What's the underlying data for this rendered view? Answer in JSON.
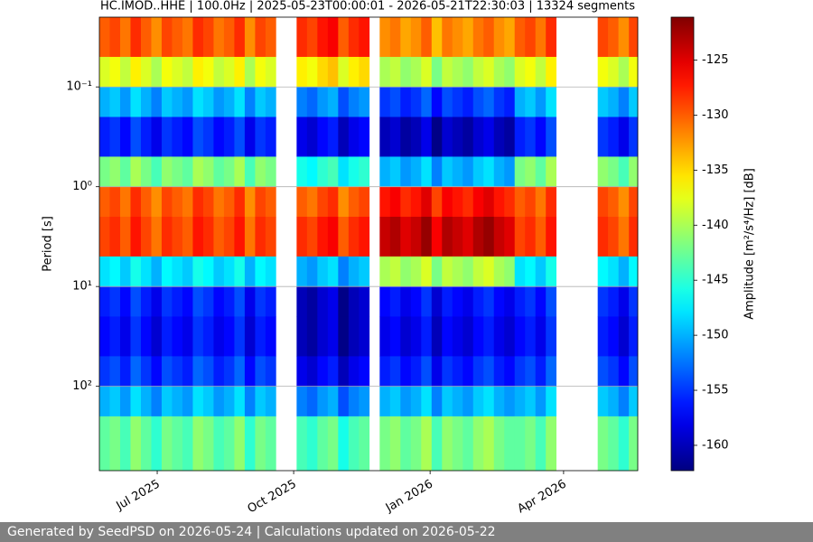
{
  "chart_data": {
    "type": "heatmap",
    "title": "HC.IMOD..HHE | 100.0Hz | 2025-05-23T00:00:01 - 2026-05-21T22:30:03 | 13324 segments",
    "ylabel": "Period [s]",
    "colorbar_label": "Amplitude [m²/s⁴/Hz] [dB]",
    "footer": "Generated by SeedPSD on 2026-05-24 | Calculations updated on 2026-05-22",
    "colormap": "jet",
    "y_log": true,
    "y_inverted": true,
    "grid": true,
    "xlim": [
      "2025-05-23",
      "2026-05-21"
    ],
    "xticks": [
      {
        "value": "2025-07-01",
        "label": "Jul 2025"
      },
      {
        "value": "2025-10-01",
        "label": "Oct 2025"
      },
      {
        "value": "2026-01-01",
        "label": "Jan 2026"
      },
      {
        "value": "2026-04-01",
        "label": "Apr 2026"
      }
    ],
    "ylim": [
      0.02,
      700
    ],
    "yticks": [
      {
        "value": 0.1,
        "label": "10⁻¹"
      },
      {
        "value": 1,
        "label": "10⁰"
      },
      {
        "value": 10,
        "label": "10¹"
      },
      {
        "value": 100,
        "label": "10²"
      }
    ],
    "clim": [
      -162.3,
      -121.1
    ],
    "cticks": [
      -160,
      -155,
      -150,
      -145,
      -140,
      -135,
      -130,
      -125
    ],
    "x": [
      "2025-05-23",
      "2025-05-30",
      "2025-06-06",
      "2025-06-13",
      "2025-06-20",
      "2025-06-27",
      "2025-07-04",
      "2025-07-11",
      "2025-07-18",
      "2025-07-25",
      "2025-08-01",
      "2025-08-08",
      "2025-08-15",
      "2025-08-22",
      "2025-08-29",
      "2025-09-05",
      "2025-09-12",
      "2025-09-19",
      "2025-09-26",
      "2025-10-03",
      "2025-10-10",
      "2025-10-17",
      "2025-10-24",
      "2025-10-31",
      "2025-11-07",
      "2025-11-14",
      "2025-11-21",
      "2025-11-28",
      "2025-12-05",
      "2025-12-12",
      "2025-12-19",
      "2025-12-26",
      "2026-01-02",
      "2026-01-09",
      "2026-01-16",
      "2026-01-23",
      "2026-01-30",
      "2026-02-06",
      "2026-02-13",
      "2026-02-20",
      "2026-02-27",
      "2026-03-06",
      "2026-03-13",
      "2026-03-20",
      "2026-03-27",
      "2026-04-03",
      "2026-04-10",
      "2026-04-17",
      "2026-04-24",
      "2026-05-01",
      "2026-05-08",
      "2026-05-15"
    ],
    "period_bins": [
      0.02,
      0.05,
      0.1,
      0.2,
      0.5,
      1,
      2,
      5,
      10,
      20,
      50,
      100,
      200,
      700
    ],
    "values": [
      [
        -130,
        -129,
        -131,
        -128,
        -130,
        -132,
        -129,
        -130,
        -131,
        -128,
        -129,
        -131,
        -130,
        -128,
        -132,
        -129,
        -130,
        null,
        null,
        -128,
        -129,
        -127,
        -126,
        -130,
        -128,
        -127,
        null,
        -132,
        -131,
        -133,
        -132,
        -130,
        -134,
        -131,
        -132,
        -133,
        -131,
        -130,
        -132,
        -133,
        -130,
        -129,
        -131,
        -128,
        null,
        null,
        null,
        null,
        -129,
        -130,
        -132,
        -129
      ],
      [
        -138,
        -137,
        -139,
        -136,
        -138,
        -140,
        -137,
        -138,
        -139,
        -136,
        -137,
        -139,
        -138,
        -136,
        -140,
        -137,
        -138,
        null,
        null,
        -136,
        -137,
        -135,
        -134,
        -138,
        -136,
        -135,
        null,
        -140,
        -139,
        -141,
        -140,
        -138,
        -142,
        -139,
        -140,
        -141,
        -139,
        -138,
        -140,
        -141,
        -138,
        -137,
        -139,
        -136,
        null,
        null,
        null,
        null,
        -137,
        -138,
        -140,
        -137
      ],
      [
        -150,
        -149,
        -151,
        -148,
        -150,
        -152,
        -149,
        -150,
        -151,
        -148,
        -149,
        -151,
        -150,
        -148,
        -152,
        -149,
        -150,
        null,
        null,
        -152,
        -153,
        -151,
        -150,
        -154,
        -152,
        -151,
        null,
        -155,
        -154,
        -156,
        -155,
        -153,
        -157,
        -154,
        -155,
        -156,
        -154,
        -153,
        -155,
        -156,
        -150,
        -149,
        -151,
        -148,
        null,
        null,
        null,
        null,
        -149,
        -150,
        -152,
        -149
      ],
      [
        -156,
        -155,
        -157,
        -154,
        -156,
        -158,
        -155,
        -156,
        -157,
        -154,
        -155,
        -157,
        -156,
        -154,
        -158,
        -155,
        -156,
        null,
        null,
        -158,
        -159,
        -157,
        -156,
        -160,
        -158,
        -157,
        null,
        -160,
        -159,
        -161,
        -160,
        -158,
        -162,
        -159,
        -160,
        -161,
        -159,
        -158,
        -160,
        -161,
        -156,
        -155,
        -157,
        -154,
        null,
        null,
        null,
        null,
        -155,
        -156,
        -158,
        -155
      ],
      [
        -142,
        -141,
        -143,
        -140,
        -142,
        -144,
        -141,
        -142,
        -143,
        -140,
        -141,
        -143,
        -142,
        -140,
        -144,
        -141,
        -142,
        null,
        null,
        -146,
        -147,
        -145,
        -144,
        -148,
        -146,
        -145,
        null,
        -150,
        -149,
        -151,
        -150,
        -148,
        -152,
        -149,
        -150,
        -151,
        -149,
        -148,
        -150,
        -151,
        -142,
        -141,
        -143,
        -140,
        null,
        null,
        null,
        null,
        -141,
        -142,
        -144,
        -141
      ],
      [
        -130,
        -129,
        -131,
        -128,
        -130,
        -132,
        -129,
        -130,
        -131,
        -128,
        -129,
        -131,
        -130,
        -128,
        -132,
        -129,
        -130,
        null,
        null,
        -130,
        -131,
        -129,
        -128,
        -132,
        -130,
        -129,
        null,
        -127,
        -126,
        -128,
        -127,
        -125,
        -129,
        -126,
        -127,
        -128,
        -126,
        -125,
        -127,
        -128,
        -130,
        -129,
        -131,
        -128,
        null,
        null,
        null,
        null,
        -129,
        -130,
        -132,
        -129
      ],
      [
        -129,
        -128,
        -130,
        -127,
        -129,
        -131,
        -128,
        -129,
        -130,
        -127,
        -128,
        -130,
        -129,
        -127,
        -131,
        -128,
        -129,
        null,
        null,
        -128,
        -129,
        -127,
        -126,
        -130,
        -128,
        -127,
        null,
        -124,
        -123,
        -125,
        -124,
        -122,
        -126,
        -123,
        -124,
        -125,
        -123,
        -122,
        -124,
        -125,
        -129,
        -128,
        -130,
        -127,
        null,
        null,
        null,
        null,
        -128,
        -129,
        -131,
        -128
      ],
      [
        -148,
        -147,
        -149,
        -146,
        -148,
        -150,
        -147,
        -148,
        -149,
        -146,
        -147,
        -149,
        -148,
        -146,
        -150,
        -147,
        -148,
        null,
        null,
        -150,
        -151,
        -149,
        -148,
        -152,
        -150,
        -149,
        null,
        -140,
        -139,
        -141,
        -140,
        -138,
        -142,
        -139,
        -140,
        -141,
        -139,
        -138,
        -140,
        -141,
        -148,
        -147,
        -149,
        -146,
        null,
        null,
        null,
        null,
        -147,
        -148,
        -150,
        -147
      ],
      [
        -156,
        -155,
        -157,
        -154,
        -156,
        -158,
        -155,
        -156,
        -157,
        -154,
        -155,
        -157,
        -156,
        -154,
        -158,
        -155,
        -156,
        null,
        null,
        -160,
        -161,
        -159,
        -158,
        -162,
        -160,
        -159,
        null,
        -157,
        -156,
        -158,
        -157,
        -155,
        -159,
        -156,
        -157,
        -158,
        -156,
        -155,
        -157,
        -158,
        -156,
        -155,
        -157,
        -154,
        null,
        null,
        null,
        null,
        -155,
        -156,
        -158,
        -155
      ],
      [
        -157,
        -156,
        -158,
        -155,
        -157,
        -159,
        -156,
        -157,
        -158,
        -155,
        -156,
        -158,
        -157,
        -155,
        -159,
        -156,
        -157,
        null,
        null,
        -160,
        -161,
        -159,
        -158,
        -162,
        -160,
        -159,
        null,
        -158,
        -157,
        -159,
        -158,
        -156,
        -160,
        -157,
        -158,
        -159,
        -157,
        -156,
        -158,
        -159,
        -157,
        -156,
        -158,
        -155,
        null,
        null,
        null,
        null,
        -156,
        -157,
        -159,
        -156
      ],
      [
        -155,
        -154,
        -156,
        -153,
        -155,
        -157,
        -154,
        -155,
        -156,
        -153,
        -154,
        -156,
        -155,
        -153,
        -157,
        -154,
        -155,
        null,
        null,
        -158,
        -159,
        -157,
        -156,
        -160,
        -158,
        -157,
        null,
        -156,
        -155,
        -157,
        -156,
        -154,
        -158,
        -155,
        -156,
        -157,
        -155,
        -154,
        -156,
        -157,
        -155,
        -154,
        -156,
        -153,
        null,
        null,
        null,
        null,
        -154,
        -155,
        -157,
        -154
      ],
      [
        -150,
        -149,
        -151,
        -148,
        -150,
        -152,
        -149,
        -150,
        -151,
        -148,
        -149,
        -151,
        -150,
        -148,
        -152,
        -149,
        -150,
        null,
        null,
        -152,
        -153,
        -151,
        -150,
        -154,
        -152,
        -151,
        null,
        -150,
        -149,
        -151,
        -150,
        -148,
        -152,
        -149,
        -150,
        -151,
        -149,
        -148,
        -150,
        -151,
        -150,
        -149,
        -151,
        -148,
        null,
        null,
        null,
        null,
        -149,
        -150,
        -152,
        -149
      ],
      [
        -143,
        -142,
        -144,
        -141,
        -143,
        -145,
        -142,
        -143,
        -144,
        -141,
        -142,
        -144,
        -143,
        -141,
        -145,
        -142,
        -143,
        null,
        null,
        -144,
        -145,
        -143,
        -142,
        -146,
        -144,
        -143,
        null,
        -142,
        -141,
        -143,
        -142,
        -140,
        -144,
        -141,
        -142,
        -143,
        -141,
        -140,
        -142,
        -143,
        -143,
        -142,
        -144,
        -141,
        null,
        null,
        null,
        null,
        -142,
        -143,
        -145,
        -142
      ]
    ]
  }
}
